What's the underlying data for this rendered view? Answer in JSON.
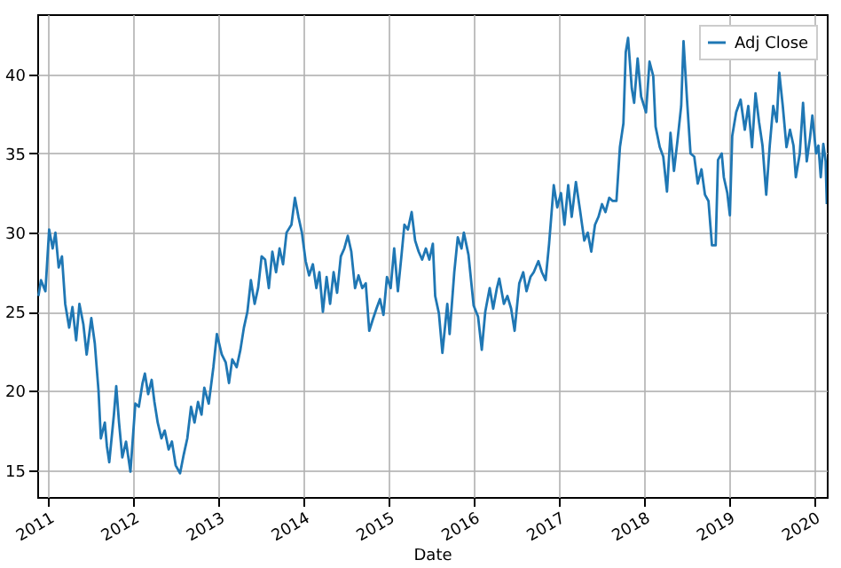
{
  "chart_data": {
    "type": "line",
    "xlabel": "Date",
    "legend": "top right",
    "grid": true,
    "xlim": [
      "2010-11-15",
      "2020-02-25"
    ],
    "xticks": [
      "2011",
      "2012",
      "2013",
      "2014",
      "2015",
      "2016",
      "2017",
      "2018",
      "2019",
      "2020"
    ],
    "ylim": [
      13.3,
      43.8
    ],
    "yticks": [
      15,
      20,
      25,
      30,
      35,
      40
    ],
    "x": [
      "2010-11-20",
      "2010-12-01",
      "2010-12-20",
      "2011-01-05",
      "2011-01-20",
      "2011-02-01",
      "2011-02-15",
      "2011-03-01",
      "2011-03-15",
      "2011-04-01",
      "2011-04-15",
      "2011-05-01",
      "2011-05-15",
      "2011-06-01",
      "2011-06-15",
      "2011-07-05",
      "2011-07-20",
      "2011-08-05",
      "2011-08-15",
      "2011-09-01",
      "2011-09-10",
      "2011-09-20",
      "2011-10-10",
      "2011-10-20",
      "2011-11-01",
      "2011-11-15",
      "2011-12-01",
      "2011-12-20",
      "2012-01-10",
      "2012-01-25",
      "2012-02-10",
      "2012-02-20",
      "2012-03-05",
      "2012-03-20",
      "2012-04-01",
      "2012-04-15",
      "2012-05-01",
      "2012-05-15",
      "2012-06-01",
      "2012-06-15",
      "2012-07-01",
      "2012-07-20",
      "2012-08-05",
      "2012-08-20",
      "2012-09-05",
      "2012-09-20",
      "2012-10-05",
      "2012-10-20",
      "2012-11-01",
      "2012-11-20",
      "2012-12-10",
      "2012-12-25",
      "2013-01-15",
      "2013-02-01",
      "2013-02-15",
      "2013-03-01",
      "2013-03-20",
      "2013-04-05",
      "2013-04-20",
      "2013-05-05",
      "2013-05-20",
      "2013-06-05",
      "2013-06-20",
      "2013-07-05",
      "2013-07-20",
      "2013-08-05",
      "2013-08-20",
      "2013-09-05",
      "2013-09-20",
      "2013-10-05",
      "2013-10-20",
      "2013-11-10",
      "2013-11-25",
      "2013-12-10",
      "2013-12-25",
      "2014-01-10",
      "2014-01-25",
      "2014-02-10",
      "2014-02-25",
      "2014-03-10",
      "2014-03-25",
      "2014-04-10",
      "2014-04-25",
      "2014-05-10",
      "2014-05-25",
      "2014-06-10",
      "2014-06-25",
      "2014-07-10",
      "2014-07-25",
      "2014-08-10",
      "2014-08-25",
      "2014-09-10",
      "2014-09-25",
      "2014-10-10",
      "2014-10-25",
      "2014-11-10",
      "2014-11-25",
      "2014-12-10",
      "2014-12-25",
      "2015-01-10",
      "2015-01-25",
      "2015-02-10",
      "2015-02-25",
      "2015-03-10",
      "2015-03-25",
      "2015-04-10",
      "2015-04-25",
      "2015-05-10",
      "2015-05-25",
      "2015-06-10",
      "2015-06-25",
      "2015-07-10",
      "2015-07-20",
      "2015-08-05",
      "2015-08-20",
      "2015-09-10",
      "2015-09-20",
      "2015-10-10",
      "2015-10-25",
      "2015-11-10",
      "2015-11-20",
      "2015-12-10",
      "2016-01-01",
      "2016-01-20",
      "2016-02-05",
      "2016-02-20",
      "2016-03-10",
      "2016-03-25",
      "2016-04-10",
      "2016-04-20",
      "2016-05-10",
      "2016-05-25",
      "2016-06-10",
      "2016-06-25",
      "2016-07-15",
      "2016-08-01",
      "2016-08-15",
      "2016-09-01",
      "2016-09-15",
      "2016-10-05",
      "2016-10-20",
      "2016-11-05",
      "2016-11-20",
      "2016-12-10",
      "2016-12-25",
      "2017-01-10",
      "2017-01-25",
      "2017-02-10",
      "2017-02-25",
      "2017-03-15",
      "2017-04-01",
      "2017-04-20",
      "2017-05-05",
      "2017-05-20",
      "2017-06-05",
      "2017-06-20",
      "2017-07-05",
      "2017-07-20",
      "2017-08-05",
      "2017-08-20",
      "2017-09-05",
      "2017-09-20",
      "2017-10-05",
      "2017-10-15",
      "2017-10-25",
      "2017-11-10",
      "2017-11-20",
      "2017-12-05",
      "2017-12-20",
      "2018-01-10",
      "2018-01-25",
      "2018-02-10",
      "2018-02-20",
      "2018-03-10",
      "2018-03-25",
      "2018-04-10",
      "2018-04-25",
      "2018-05-10",
      "2018-05-25",
      "2018-06-10",
      "2018-06-20",
      "2018-07-05",
      "2018-07-20",
      "2018-08-05",
      "2018-08-20",
      "2018-09-05",
      "2018-09-20",
      "2018-10-05",
      "2018-10-20",
      "2018-11-05",
      "2018-11-15",
      "2018-12-01",
      "2018-12-10",
      "2018-12-25",
      "2019-01-05",
      "2019-01-15",
      "2019-02-01",
      "2019-02-20",
      "2019-03-10",
      "2019-03-25",
      "2019-04-10",
      "2019-04-25",
      "2019-05-10",
      "2019-05-25",
      "2019-06-10",
      "2019-06-25",
      "2019-07-10",
      "2019-07-25",
      "2019-08-05",
      "2019-08-20",
      "2019-09-05",
      "2019-09-20",
      "2019-10-05",
      "2019-10-15",
      "2019-11-01",
      "2019-11-15",
      "2019-12-01",
      "2019-12-15",
      "2019-12-25",
      "2020-01-10",
      "2020-01-20",
      "2020-01-30",
      "2020-02-10",
      "2020-02-20",
      "2020-02-25"
    ],
    "series": [
      {
        "name": "Adj Close",
        "color": "#1f77b4",
        "values": [
          26.0,
          27.0,
          26.3,
          30.2,
          29.0,
          30.0,
          27.8,
          28.5,
          25.5,
          24.0,
          25.3,
          23.2,
          25.5,
          24.2,
          22.3,
          24.6,
          23.0,
          20.0,
          17.0,
          18.0,
          16.5,
          15.5,
          18.5,
          20.3,
          18.0,
          15.8,
          16.8,
          14.9,
          19.2,
          19.0,
          20.5,
          21.1,
          19.8,
          20.7,
          19.3,
          18.0,
          17.0,
          17.5,
          16.3,
          16.8,
          15.3,
          14.8,
          16.0,
          17.0,
          19.0,
          18.0,
          19.3,
          18.5,
          20.2,
          19.2,
          21.5,
          23.6,
          22.3,
          21.8,
          20.5,
          22.0,
          21.5,
          22.6,
          24.0,
          25.0,
          27.0,
          25.5,
          26.5,
          28.5,
          28.3,
          26.5,
          28.8,
          27.5,
          29.0,
          28.0,
          30.0,
          30.5,
          32.2,
          31.0,
          30.0,
          28.2,
          27.3,
          28.0,
          26.5,
          27.5,
          25.0,
          27.2,
          25.5,
          27.5,
          26.2,
          28.5,
          29.0,
          29.8,
          28.8,
          26.5,
          27.3,
          26.5,
          26.8,
          23.8,
          24.5,
          25.2,
          25.8,
          24.8,
          27.2,
          26.5,
          29.0,
          26.3,
          28.5,
          30.5,
          30.2,
          31.3,
          29.5,
          28.8,
          28.3,
          29.0,
          28.3,
          29.3,
          26.0,
          24.9,
          22.4,
          25.5,
          23.6,
          27.5,
          29.7,
          29.0,
          30.0,
          28.6,
          25.4,
          24.7,
          22.6,
          25.0,
          26.5,
          25.2,
          26.5,
          27.1,
          25.5,
          26.0,
          25.2,
          23.8,
          26.8,
          27.5,
          26.3,
          27.2,
          27.5,
          28.2,
          27.5,
          27.0,
          29.3,
          33.0,
          31.6,
          32.5,
          30.5,
          33.0,
          31.0,
          33.2,
          31.5,
          29.5,
          30.0,
          28.8,
          30.5,
          31.0,
          31.8,
          31.3,
          32.2,
          32.0,
          32.0,
          35.4,
          36.9,
          41.4,
          42.3,
          39.1,
          38.2,
          41.0,
          38.6,
          37.6,
          40.8,
          39.9,
          36.7,
          35.4,
          34.8,
          32.6,
          36.3,
          33.9,
          35.8,
          38.0,
          42.1,
          38.4,
          35.0,
          34.8,
          33.1,
          34.0,
          32.4,
          32.0,
          29.2,
          29.2,
          34.6,
          35.0,
          33.5,
          32.5,
          31.1,
          36.1,
          37.6,
          38.4,
          36.5,
          38.0,
          35.4,
          38.8,
          37.0,
          35.5,
          32.4,
          35.5,
          38.0,
          37.0,
          40.1,
          38.0,
          35.4,
          36.5,
          35.5,
          33.5,
          35.0,
          38.2,
          34.5,
          36.0,
          37.4,
          35.0,
          35.5,
          33.5,
          35.6,
          34.5,
          31.8
        ]
      }
    ]
  }
}
